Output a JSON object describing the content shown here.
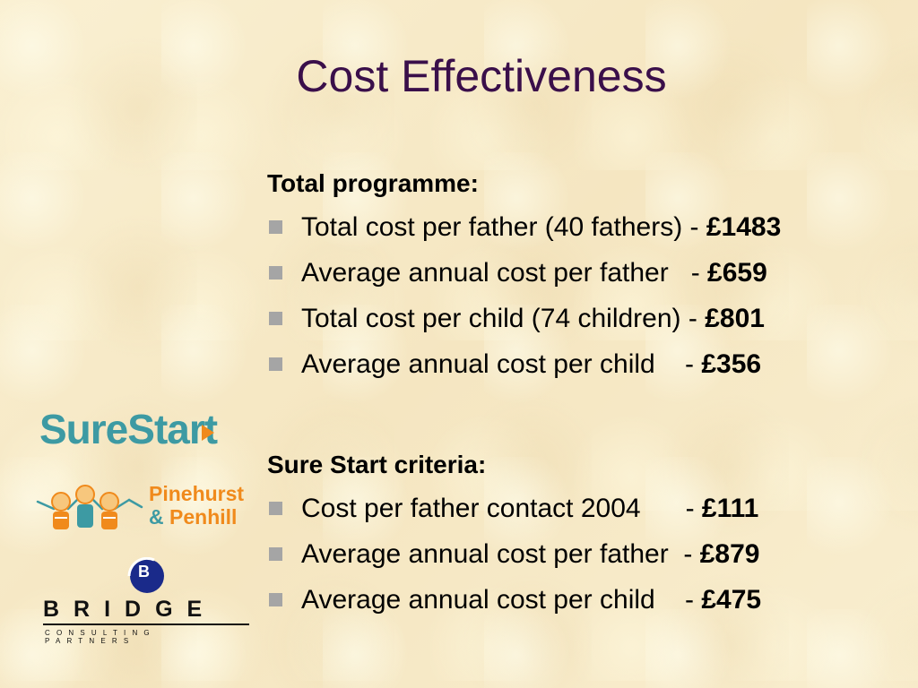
{
  "slide": {
    "title": "Cost Effectiveness",
    "sections": [
      {
        "heading": "Total programme:",
        "items": [
          {
            "text": "Total cost per father (40 fathers) - ",
            "value": "£1483"
          },
          {
            "text": "Average annual cost per father   - ",
            "value": "£659"
          },
          {
            "text": "Total cost per child (74 children) - ",
            "value": "£801"
          },
          {
            "text": "Average annual cost per child    - ",
            "value": "£356"
          }
        ]
      },
      {
        "heading": "Sure Start criteria:",
        "items": [
          {
            "text": "Cost per father contact 2004      - ",
            "value": "£111"
          },
          {
            "text": "Average annual cost per father  - ",
            "value": "£879"
          },
          {
            "text": "Average annual cost per child    - ",
            "value": "£475"
          }
        ]
      }
    ]
  },
  "logos": {
    "surestart": "SureStart",
    "pinehurst_line1": "Pinehurst",
    "pinehurst_amp": "&",
    "pinehurst_line2": "Penhill",
    "bridge_word": "BRIDGE",
    "bridge_sub": "CONSULTING PARTNERS",
    "bridge_mark": "B"
  },
  "colors": {
    "background": "#f8ecca",
    "title": "#3a0f4a",
    "bullet": "#a5a5a5",
    "surestart_teal": "#3d9aa3",
    "orange": "#f08a1c",
    "bridge_blue": "#1a2a8a"
  },
  "icons": {
    "bullet": "square-bullet-icon",
    "surestart_play": "play-triangle-icon",
    "pinehurst_children": "children-figures-icon",
    "bridge_mark": "bridge-b-mark-icon"
  }
}
